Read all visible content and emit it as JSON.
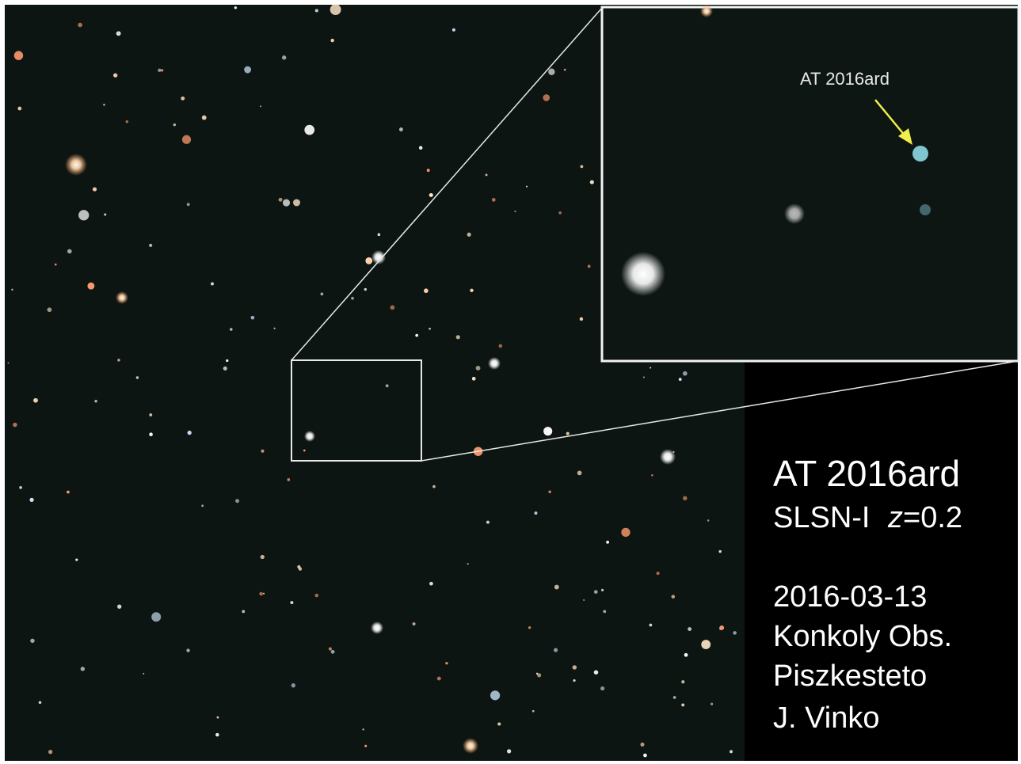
{
  "inset": {
    "label": "AT 2016ard"
  },
  "caption": {
    "name": "AT 2016ard",
    "classification": "SLSN-I",
    "redshift_symbol": "z",
    "redshift_value": "=0.2",
    "date": "2016-03-13",
    "observatory": "Konkoly Obs.",
    "site": "Piszkesteto",
    "observer": "J. Vinko"
  }
}
